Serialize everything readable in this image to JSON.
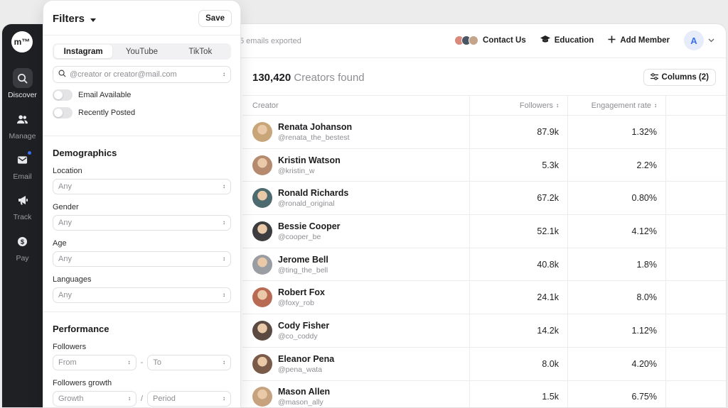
{
  "rail": {
    "logo": "m™",
    "items": [
      {
        "label": "Discover",
        "icon": "search-icon"
      },
      {
        "label": "Manage",
        "icon": "users-icon"
      },
      {
        "label": "Email",
        "icon": "mail-icon"
      },
      {
        "label": "Track",
        "icon": "megaphone-icon"
      },
      {
        "label": "Pay",
        "icon": "dollar-icon"
      }
    ]
  },
  "topbar": {
    "export_text": "5 emails exported",
    "contact_label": "Contact Us",
    "education_label": "Education",
    "add_member_label": "Add Member",
    "avatar_initial": "A"
  },
  "results": {
    "count": "130,420",
    "suffix": "Creators found",
    "columns_label": "Columns (2)"
  },
  "table": {
    "headers": {
      "creator": "Creator",
      "followers": "Followers",
      "engagement": "Engagement rate"
    },
    "rows": [
      {
        "name": "Renata Johanson",
        "handle": "@renata_the_bestest",
        "followers": "87.9k",
        "engagement": "1.32%",
        "avatar_color": "#c9a57a"
      },
      {
        "name": "Kristin Watson",
        "handle": "@kristin_w",
        "followers": "5.3k",
        "engagement": "2.2%",
        "avatar_color": "#b58a6e"
      },
      {
        "name": "Ronald Richards",
        "handle": "@ronald_original",
        "followers": "67.2k",
        "engagement": "0.80%",
        "avatar_color": "#4d6a6f"
      },
      {
        "name": "Bessie Cooper",
        "handle": "@cooper_be",
        "followers": "52.1k",
        "engagement": "4.12%",
        "avatar_color": "#3d3d3f"
      },
      {
        "name": "Jerome Bell",
        "handle": "@ting_the_bell",
        "followers": "40.8k",
        "engagement": "1.8%",
        "avatar_color": "#9a9ea3"
      },
      {
        "name": "Robert Fox",
        "handle": "@foxy_rob",
        "followers": "24.1k",
        "engagement": "8.0%",
        "avatar_color": "#b86a52"
      },
      {
        "name": "Cody Fisher",
        "handle": "@co_coddy",
        "followers": "14.2k",
        "engagement": "1.12%",
        "avatar_color": "#5a4a42"
      },
      {
        "name": "Eleanor Pena",
        "handle": "@pena_wata",
        "followers": "8.0k",
        "engagement": "4.20%",
        "avatar_color": "#7a5a48"
      },
      {
        "name": "Mason Allen",
        "handle": "@mason_ally",
        "followers": "1.5k",
        "engagement": "6.75%",
        "avatar_color": "#c6a27e"
      }
    ]
  },
  "filters": {
    "title": "Filters",
    "save_label": "Save",
    "tabs": [
      "Instagram",
      "YouTube",
      "TikTok"
    ],
    "search_placeholder": "@creator or creator@mail.com",
    "toggle_email": "Email Available",
    "toggle_recent": "Recently Posted",
    "demographics_title": "Demographics",
    "location_label": "Location",
    "location_value": "Any",
    "gender_label": "Gender",
    "gender_value": "Any",
    "age_label": "Age",
    "age_value": "Any",
    "languages_label": "Languages",
    "languages_value": "Any",
    "performance_title": "Performance",
    "followers_label": "Followers",
    "from_placeholder": "From",
    "range_sep": "-",
    "to_placeholder": "To",
    "growth_label": "Followers growth",
    "growth_placeholder": "Growth",
    "growth_sep": "/",
    "period_placeholder": "Period"
  }
}
